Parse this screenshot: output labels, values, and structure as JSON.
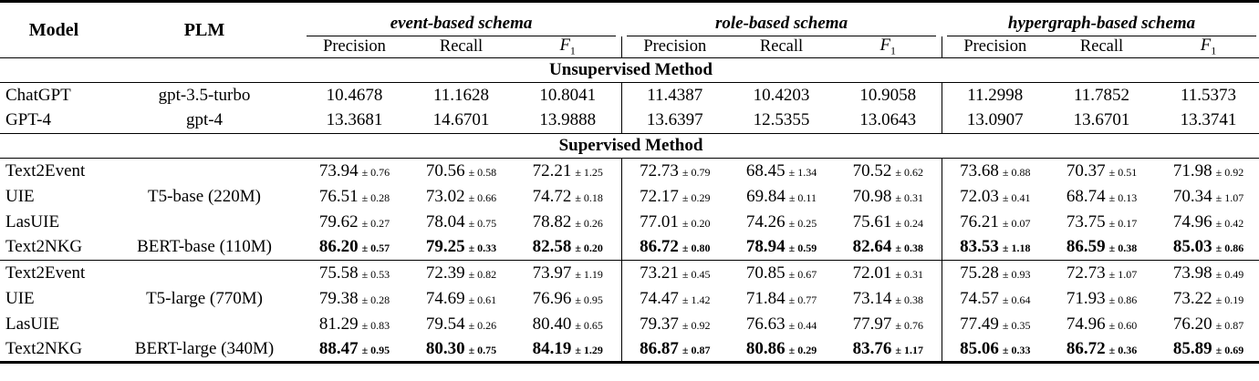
{
  "table": {
    "header": {
      "model": "Model",
      "plm": "PLM",
      "groups": [
        "event-based schema",
        "role-based schema",
        "hypergraph-based schema"
      ],
      "metrics": [
        {
          "label": "Precision"
        },
        {
          "label": "Recall"
        },
        {
          "label": "F",
          "sub": "1"
        }
      ]
    },
    "sections": [
      {
        "banner": "Unsupervised Method",
        "blocks": [
          {
            "rows": [
              {
                "model": "ChatGPT",
                "plm": "gpt-3.5-turbo",
                "bold": false,
                "values": [
                  {
                    "v": "10.4678"
                  },
                  {
                    "v": "11.1628"
                  },
                  {
                    "v": "10.8041"
                  },
                  {
                    "v": "11.4387"
                  },
                  {
                    "v": "10.4203"
                  },
                  {
                    "v": "10.9058"
                  },
                  {
                    "v": "11.2998"
                  },
                  {
                    "v": "11.7852"
                  },
                  {
                    "v": "11.5373"
                  }
                ]
              },
              {
                "model": "GPT-4",
                "plm": "gpt-4",
                "bold": false,
                "values": [
                  {
                    "v": "13.3681"
                  },
                  {
                    "v": "14.6701"
                  },
                  {
                    "v": "13.9888"
                  },
                  {
                    "v": "13.6397"
                  },
                  {
                    "v": "12.5355"
                  },
                  {
                    "v": "13.0643"
                  },
                  {
                    "v": "13.0907"
                  },
                  {
                    "v": "13.6701"
                  },
                  {
                    "v": "13.3741"
                  }
                ]
              }
            ]
          }
        ]
      },
      {
        "banner": "Supervised Method",
        "blocks": [
          {
            "rows": [
              {
                "model": "Text2Event",
                "plm": "",
                "bold": false,
                "values": [
                  {
                    "v": "73.94",
                    "e": "± 0.76"
                  },
                  {
                    "v": "70.56",
                    "e": "± 0.58"
                  },
                  {
                    "v": "72.21",
                    "e": "± 1.25"
                  },
                  {
                    "v": "72.73",
                    "e": "± 0.79"
                  },
                  {
                    "v": "68.45",
                    "e": "± 1.34"
                  },
                  {
                    "v": "70.52",
                    "e": "± 0.62"
                  },
                  {
                    "v": "73.68",
                    "e": "± 0.88"
                  },
                  {
                    "v": "70.37",
                    "e": "± 0.51"
                  },
                  {
                    "v": "71.98",
                    "e": "± 0.92"
                  }
                ]
              },
              {
                "model": "UIE",
                "plm": "T5-base (220M)",
                "bold": false,
                "values": [
                  {
                    "v": "76.51",
                    "e": "± 0.28"
                  },
                  {
                    "v": "73.02",
                    "e": "± 0.66"
                  },
                  {
                    "v": "74.72",
                    "e": "± 0.18"
                  },
                  {
                    "v": "72.17",
                    "e": "± 0.29"
                  },
                  {
                    "v": "69.84",
                    "e": "± 0.11"
                  },
                  {
                    "v": "70.98",
                    "e": "± 0.31"
                  },
                  {
                    "v": "72.03",
                    "e": "± 0.41"
                  },
                  {
                    "v": "68.74",
                    "e": "± 0.13"
                  },
                  {
                    "v": "70.34",
                    "e": "± 1.07"
                  }
                ]
              },
              {
                "model": "LasUIE",
                "plm": "",
                "bold": false,
                "values": [
                  {
                    "v": "79.62",
                    "e": "± 0.27"
                  },
                  {
                    "v": "78.04",
                    "e": "± 0.75"
                  },
                  {
                    "v": "78.82",
                    "e": "± 0.26"
                  },
                  {
                    "v": "77.01",
                    "e": "± 0.20"
                  },
                  {
                    "v": "74.26",
                    "e": "± 0.25"
                  },
                  {
                    "v": "75.61",
                    "e": "± 0.24"
                  },
                  {
                    "v": "76.21",
                    "e": "± 0.07"
                  },
                  {
                    "v": "73.75",
                    "e": "± 0.17"
                  },
                  {
                    "v": "74.96",
                    "e": "± 0.42"
                  }
                ]
              },
              {
                "model": "Text2NKG",
                "plm": "BERT-base (110M)",
                "bold": true,
                "values": [
                  {
                    "v": "86.20",
                    "e": "± 0.57"
                  },
                  {
                    "v": "79.25",
                    "e": "± 0.33"
                  },
                  {
                    "v": "82.58",
                    "e": "± 0.20"
                  },
                  {
                    "v": "86.72",
                    "e": "± 0.80"
                  },
                  {
                    "v": "78.94",
                    "e": "± 0.59"
                  },
                  {
                    "v": "82.64",
                    "e": "± 0.38"
                  },
                  {
                    "v": "83.53",
                    "e": "± 1.18"
                  },
                  {
                    "v": "86.59",
                    "e": "± 0.38"
                  },
                  {
                    "v": "85.03",
                    "e": "± 0.86"
                  }
                ]
              }
            ]
          },
          {
            "rows": [
              {
                "model": "Text2Event",
                "plm": "",
                "bold": false,
                "values": [
                  {
                    "v": "75.58",
                    "e": "± 0.53"
                  },
                  {
                    "v": "72.39",
                    "e": "± 0.82"
                  },
                  {
                    "v": "73.97",
                    "e": "± 1.19"
                  },
                  {
                    "v": "73.21",
                    "e": "± 0.45"
                  },
                  {
                    "v": "70.85",
                    "e": "± 0.67"
                  },
                  {
                    "v": "72.01",
                    "e": "± 0.31"
                  },
                  {
                    "v": "75.28",
                    "e": "± 0.93"
                  },
                  {
                    "v": "72.73",
                    "e": "± 1.07"
                  },
                  {
                    "v": "73.98",
                    "e": "± 0.49"
                  }
                ]
              },
              {
                "model": "UIE",
                "plm": "T5-large (770M)",
                "bold": false,
                "values": [
                  {
                    "v": "79.38",
                    "e": "± 0.28"
                  },
                  {
                    "v": "74.69",
                    "e": "± 0.61"
                  },
                  {
                    "v": "76.96",
                    "e": "± 0.95"
                  },
                  {
                    "v": "74.47",
                    "e": "± 1.42"
                  },
                  {
                    "v": "71.84",
                    "e": "± 0.77"
                  },
                  {
                    "v": "73.14",
                    "e": "± 0.38"
                  },
                  {
                    "v": "74.57",
                    "e": "± 0.64"
                  },
                  {
                    "v": "71.93",
                    "e": "± 0.86"
                  },
                  {
                    "v": "73.22",
                    "e": "± 0.19"
                  }
                ]
              },
              {
                "model": "LasUIE",
                "plm": "",
                "bold": false,
                "values": [
                  {
                    "v": "81.29",
                    "e": "± 0.83"
                  },
                  {
                    "v": "79.54",
                    "e": "± 0.26"
                  },
                  {
                    "v": "80.40",
                    "e": "± 0.65"
                  },
                  {
                    "v": "79.37",
                    "e": "± 0.92"
                  },
                  {
                    "v": "76.63",
                    "e": "± 0.44"
                  },
                  {
                    "v": "77.97",
                    "e": "± 0.76"
                  },
                  {
                    "v": "77.49",
                    "e": "± 0.35"
                  },
                  {
                    "v": "74.96",
                    "e": "± 0.60"
                  },
                  {
                    "v": "76.20",
                    "e": "± 0.87"
                  }
                ]
              },
              {
                "model": "Text2NKG",
                "plm": "BERT-large (340M)",
                "bold": true,
                "values": [
                  {
                    "v": "88.47",
                    "e": "± 0.95"
                  },
                  {
                    "v": "80.30",
                    "e": "± 0.75"
                  },
                  {
                    "v": "84.19",
                    "e": "± 1.29"
                  },
                  {
                    "v": "86.87",
                    "e": "± 0.87"
                  },
                  {
                    "v": "80.86",
                    "e": "± 0.29"
                  },
                  {
                    "v": "83.76",
                    "e": "± 1.17"
                  },
                  {
                    "v": "85.06",
                    "e": "± 0.33"
                  },
                  {
                    "v": "86.72",
                    "e": "± 0.36"
                  },
                  {
                    "v": "85.89",
                    "e": "± 0.69"
                  }
                ]
              }
            ]
          }
        ]
      }
    ]
  }
}
